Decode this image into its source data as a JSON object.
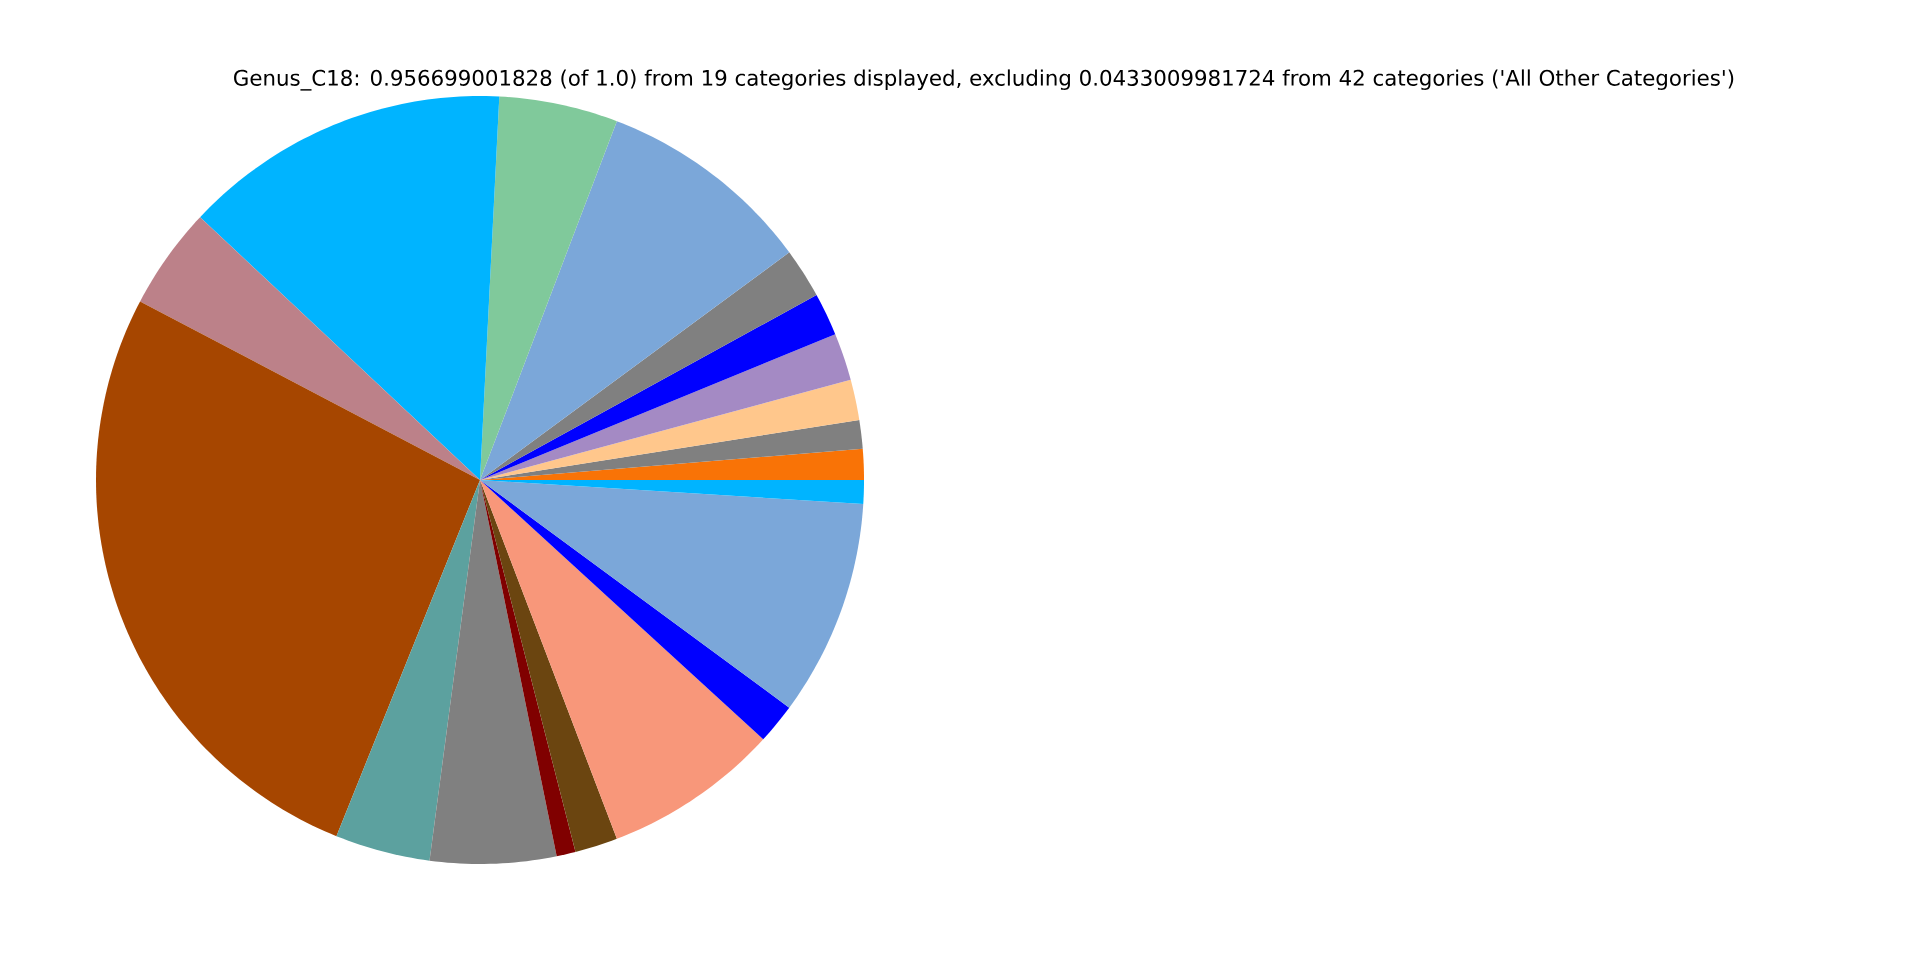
{
  "chart_data": {
    "type": "pie",
    "title": "Genus_C18: 0.956699001828 (of 1.0) from 19 categories displayed, excluding 0.0433009981724 from 42 categories ('All Other Categories')",
    "categories": [
      null,
      null,
      null,
      null,
      null,
      null,
      null,
      null,
      null,
      null,
      null,
      null,
      null,
      null,
      null,
      null,
      null,
      null,
      null
    ],
    "values": [
      1.3,
      1.2,
      1.7,
      2.0,
      1.8,
      2.1,
      9.1,
      5.0,
      13.8,
      4.3,
      26.6,
      4.0,
      5.3,
      0.8,
      1.8,
      7.4,
      1.7,
      9.1,
      1.0
    ],
    "colors": [
      "#f97306",
      "#808080",
      "#ffc78c",
      "#a48ac4",
      "#0000ff",
      "#808080",
      "#7ba7d9",
      "#80c99b",
      "#00b4ff",
      "#bc8189",
      "#a64600",
      "#5ca19f",
      "#808080",
      "#800000",
      "#6b4510",
      "#f8977a",
      "#0000ff",
      "#7ba7d9",
      "#00b4ff"
    ]
  }
}
